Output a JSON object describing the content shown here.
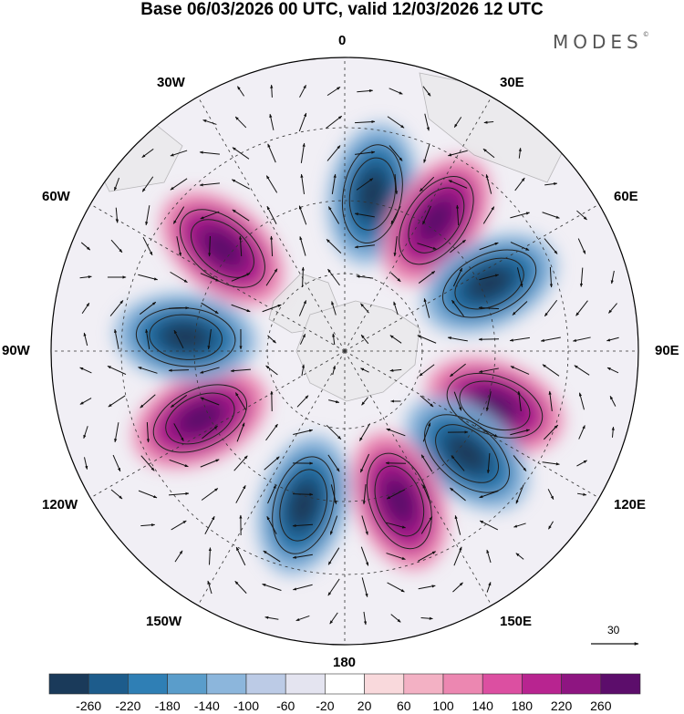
{
  "title": "Base 06/03/2026 00 UTC, valid 12/03/2026 12 UTC",
  "brand": "MODES",
  "brand_mark": "©",
  "map": {
    "projection": "north polar stereographic",
    "longitude_labels": {
      "top": "0",
      "top_right": "30E",
      "upper_right": "60E",
      "right": "90E",
      "lower_right": "120E",
      "bottom_right": "150E",
      "bottom": "180",
      "bottom_left": "150W",
      "lower_left": "120W",
      "left": "90W",
      "upper_left": "60W",
      "top_left": "30W"
    },
    "reference_vector_label": "30",
    "anomaly_centers": [
      {
        "sign": "negative",
        "longitude": "10E"
      },
      {
        "sign": "positive",
        "longitude": "35E"
      },
      {
        "sign": "negative",
        "longitude": "65E"
      },
      {
        "sign": "positive",
        "longitude": "110E"
      },
      {
        "sign": "negative",
        "longitude": "130E"
      },
      {
        "sign": "positive",
        "longitude": "160E"
      },
      {
        "sign": "negative",
        "longitude": "165W"
      },
      {
        "sign": "positive",
        "longitude": "115W"
      },
      {
        "sign": "negative",
        "longitude": "85W"
      },
      {
        "sign": "positive",
        "longitude": "50W"
      }
    ]
  },
  "colorbar": {
    "ticks": [
      "-260",
      "-220",
      "-180",
      "-140",
      "-100",
      "-60",
      "-20",
      "20",
      "60",
      "100",
      "140",
      "180",
      "220",
      "260"
    ],
    "colors": [
      "#1a3a5a",
      "#1d5c8c",
      "#2f7fb5",
      "#5a9dcb",
      "#8cb6dc",
      "#bccbe6",
      "#e4e4f0",
      "#ffffff",
      "#f9d9dc",
      "#f3b1c4",
      "#ec87b1",
      "#dc4fa1",
      "#b82490",
      "#8e1581",
      "#5c0d6b"
    ]
  }
}
